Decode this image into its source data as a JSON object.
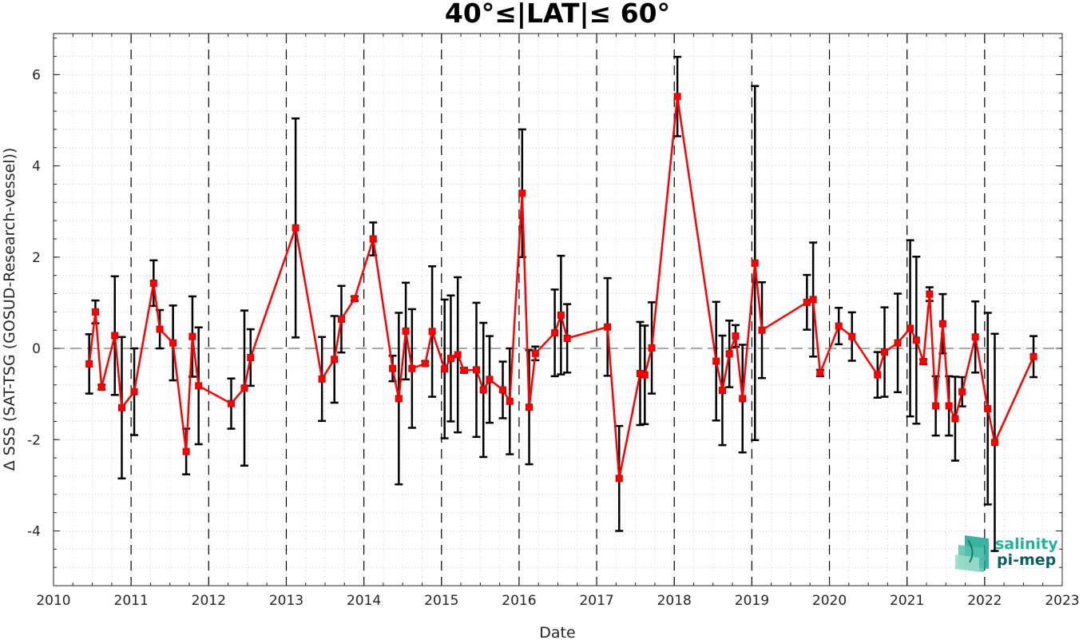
{
  "chart_data": {
    "type": "line",
    "title": "40°≤|LAT|≤ 60°",
    "xlabel": "Date",
    "ylabel": "Δ SSS (SAT-TSG (GOSUD-Research-vessel))",
    "xlim": [
      2010,
      2023
    ],
    "ylim": [
      -5.2,
      6.9
    ],
    "xticks": [
      2010,
      2011,
      2012,
      2013,
      2014,
      2015,
      2016,
      2017,
      2018,
      2019,
      2020,
      2021,
      2022,
      2023
    ],
    "yticks": [
      -4,
      -2,
      0,
      2,
      4,
      6
    ],
    "grid": "dotted minor grid on",
    "reference_line_y": 0,
    "year_separators": [
      2011,
      2012,
      2013,
      2014,
      2015,
      2016,
      2017,
      2018,
      2019,
      2020,
      2021,
      2022
    ],
    "colors": {
      "series": "#ff0000",
      "errorbar": "#000000",
      "zero_line": "#666666"
    },
    "series": [
      {
        "x": [
          2010.46,
          2010.54,
          2010.62,
          2010.79,
          2010.88,
          2011.04,
          2011.29,
          2011.37,
          2011.54,
          2011.71,
          2011.79,
          2011.87,
          2012.29,
          2012.46,
          2012.54,
          2013.12,
          2013.46,
          2013.62,
          2013.71,
          2013.88,
          2014.12,
          2014.37,
          2014.45,
          2014.54,
          2014.62,
          2014.79,
          2014.88,
          2015.04,
          2015.12,
          2015.21,
          2015.29,
          2015.45,
          2015.54,
          2015.62,
          2015.79,
          2015.88,
          2016.04,
          2016.13,
          2016.21,
          2016.46,
          2016.54,
          2016.62,
          2017.14,
          2017.29,
          2017.56,
          2017.62,
          2017.71,
          2018.04,
          2018.54,
          2018.62,
          2018.71,
          2018.79,
          2018.88,
          2019.04,
          2019.13,
          2019.71,
          2019.79,
          2019.88,
          2020.12,
          2020.29,
          2020.62,
          2020.71,
          2020.88,
          2021.04,
          2021.12,
          2021.21,
          2021.29,
          2021.37,
          2021.46,
          2021.54,
          2021.62,
          2021.71,
          2021.88,
          2022.04,
          2022.13,
          2022.63
        ],
        "y": [
          -0.34,
          0.8,
          -0.85,
          0.28,
          -1.3,
          -0.95,
          1.43,
          0.42,
          0.12,
          -2.26,
          0.26,
          -0.82,
          -1.21,
          -0.87,
          -0.2,
          2.64,
          -0.67,
          -0.24,
          0.64,
          1.09,
          2.4,
          -0.44,
          -1.1,
          0.38,
          -0.44,
          -0.33,
          0.37,
          -0.45,
          -0.22,
          -0.14,
          -0.48,
          -0.47,
          -0.91,
          -0.68,
          -0.91,
          -1.16,
          3.4,
          -1.29,
          -0.11,
          0.34,
          0.73,
          0.22,
          0.47,
          -2.85,
          -0.55,
          -0.58,
          0.01,
          5.52,
          -0.28,
          -0.92,
          -0.12,
          0.27,
          -1.1,
          1.87,
          0.4,
          1.01,
          1.07,
          -0.54,
          0.49,
          0.26,
          -0.58,
          -0.08,
          0.12,
          0.44,
          0.18,
          -0.29,
          1.19,
          -1.26,
          0.54,
          -1.26,
          -1.54,
          -0.95,
          0.25,
          -1.32,
          -2.06,
          -0.18
        ],
        "yerr": [
          0.65,
          0.25,
          0.05,
          1.3,
          1.55,
          0.95,
          0.5,
          0.42,
          0.82,
          0.5,
          0.88,
          1.28,
          0.55,
          1.7,
          0.62,
          2.4,
          0.92,
          0.95,
          0.73,
          0.05,
          0.36,
          0.28,
          1.88,
          1.06,
          1.3,
          0.05,
          1.43,
          1.52,
          1.38,
          1.7,
          0.05,
          1.47,
          1.47,
          0.95,
          0.62,
          1.16,
          1.4,
          1.25,
          0.15,
          0.95,
          1.3,
          0.75,
          1.07,
          1.15,
          1.13,
          1.08,
          1.0,
          0.87,
          1.3,
          1.2,
          0.73,
          0.24,
          1.18,
          3.88,
          1.05,
          0.6,
          1.25,
          0.07,
          0.4,
          0.53,
          0.5,
          0.98,
          1.08,
          1.93,
          1.83,
          0.05,
          0.15,
          0.65,
          0.65,
          0.65,
          0.92,
          0.32,
          0.78,
          2.1,
          2.38,
          0.45
        ]
      }
    ]
  },
  "logo": {
    "line1": "salinity",
    "line2": "pi-mep"
  }
}
